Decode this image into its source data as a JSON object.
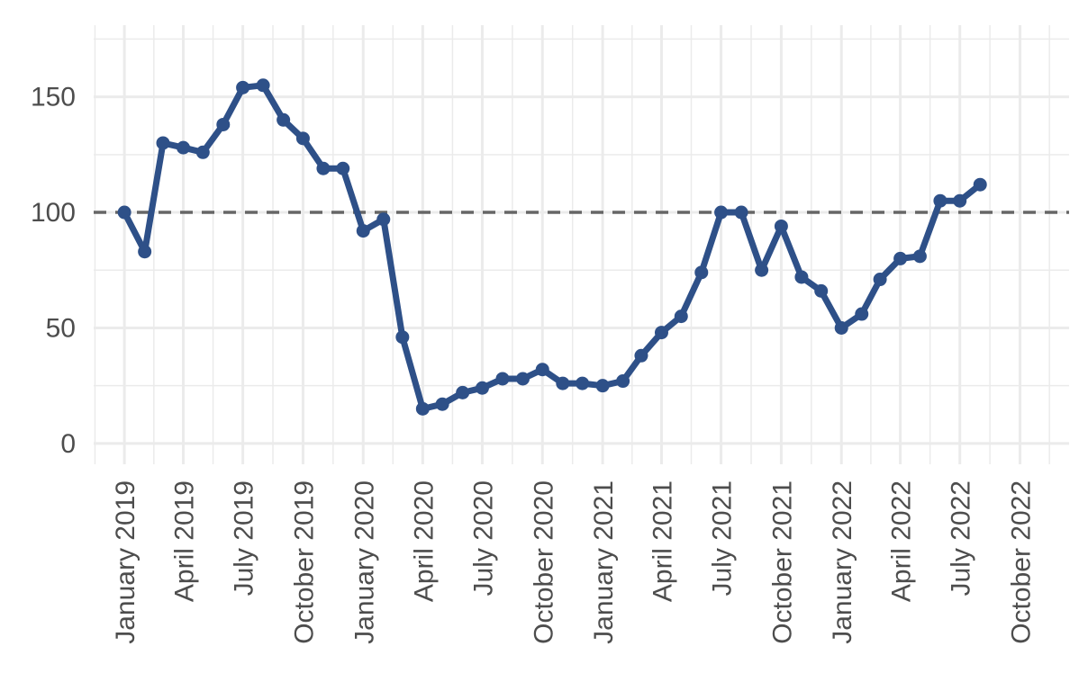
{
  "chart_data": {
    "type": "line",
    "title": "",
    "xlabel": "",
    "ylabel": "",
    "ylim": [
      -9,
      181
    ],
    "y_ticks": [
      0,
      50,
      100,
      150
    ],
    "x_range": [
      "2018-11-15",
      "2022-12-15"
    ],
    "x_ticks": [
      {
        "date": "2019-01-01",
        "label": "January 2019"
      },
      {
        "date": "2019-04-01",
        "label": "April 2019"
      },
      {
        "date": "2019-07-01",
        "label": "July 2019"
      },
      {
        "date": "2019-10-01",
        "label": "October 2019"
      },
      {
        "date": "2020-01-01",
        "label": "January 2020"
      },
      {
        "date": "2020-04-01",
        "label": "April 2020"
      },
      {
        "date": "2020-07-01",
        "label": "July 2020"
      },
      {
        "date": "2020-10-01",
        "label": "October 2020"
      },
      {
        "date": "2021-01-01",
        "label": "January 2021"
      },
      {
        "date": "2021-04-01",
        "label": "April 2021"
      },
      {
        "date": "2021-07-01",
        "label": "July 2021"
      },
      {
        "date": "2021-10-01",
        "label": "October 2021"
      },
      {
        "date": "2022-01-01",
        "label": "January 2022"
      },
      {
        "date": "2022-04-01",
        "label": "April 2022"
      },
      {
        "date": "2022-07-01",
        "label": "July 2022"
      },
      {
        "date": "2022-10-01",
        "label": "October 2022"
      }
    ],
    "reference_line": {
      "y": 100,
      "style": "dashed",
      "color": "#666666"
    },
    "grid": true,
    "legend": "none",
    "colors": {
      "series": "#2e5088",
      "grid": "#ebebeb",
      "reference": "#666666"
    },
    "series": [
      {
        "x": [
          "2019-01-01",
          "2019-02-01",
          "2019-03-01",
          "2019-04-01",
          "2019-05-01",
          "2019-06-01",
          "2019-07-01",
          "2019-08-01",
          "2019-09-01",
          "2019-10-01",
          "2019-11-01",
          "2019-12-01",
          "2020-01-01",
          "2020-02-01",
          "2020-03-01",
          "2020-04-01",
          "2020-05-01",
          "2020-06-01",
          "2020-07-01",
          "2020-08-01",
          "2020-09-01",
          "2020-10-01",
          "2020-11-01",
          "2020-12-01",
          "2021-01-01",
          "2021-02-01",
          "2021-03-01",
          "2021-04-01",
          "2021-05-01",
          "2021-06-01",
          "2021-07-01",
          "2021-08-01",
          "2021-09-01",
          "2021-10-01",
          "2021-11-01",
          "2021-12-01",
          "2022-01-01",
          "2022-02-01",
          "2022-03-01",
          "2022-04-01",
          "2022-05-01",
          "2022-06-01",
          "2022-07-01",
          "2022-08-01"
        ],
        "values": [
          100,
          83,
          130,
          128,
          126,
          138,
          154,
          155,
          140,
          132,
          119,
          119,
          92,
          97,
          46,
          15,
          17,
          22,
          24,
          28,
          28,
          32,
          26,
          26,
          25,
          27,
          38,
          48,
          55,
          74,
          100,
          100,
          75,
          94,
          72,
          66,
          50,
          56,
          71,
          80,
          81,
          105,
          105,
          112
        ]
      }
    ]
  }
}
